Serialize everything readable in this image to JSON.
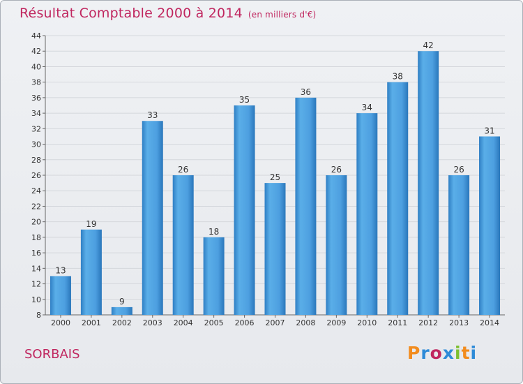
{
  "title": "Résultat Comptable 2000 à 2014",
  "unit": "(en milliers d'€)",
  "location": "SORBAIS",
  "brand": {
    "text": "Proxiti",
    "colors": [
      "#f28c1e",
      "#2e8bd8",
      "#c0265f",
      "#2e8bd8",
      "#7cbf2f",
      "#f28c1e",
      "#2e8bd8"
    ]
  },
  "colors": {
    "bar": "#3a8fd6",
    "bar_light": "#5aaee8",
    "title": "#c0265f"
  },
  "chart_data": {
    "type": "bar",
    "categories": [
      "2000",
      "2001",
      "2002",
      "2003",
      "2004",
      "2005",
      "2006",
      "2007",
      "2008",
      "2009",
      "2010",
      "2011",
      "2012",
      "2013",
      "2014"
    ],
    "values": [
      13,
      19,
      9,
      33,
      26,
      18,
      35,
      25,
      36,
      26,
      34,
      38,
      42,
      26,
      31
    ],
    "ylim": [
      8,
      44
    ],
    "yticks": [
      8,
      10,
      12,
      14,
      16,
      18,
      20,
      22,
      24,
      26,
      28,
      30,
      32,
      34,
      36,
      38,
      40,
      42,
      44
    ],
    "title": "Résultat Comptable 2000 à 2014",
    "xlabel": "",
    "ylabel": ""
  }
}
